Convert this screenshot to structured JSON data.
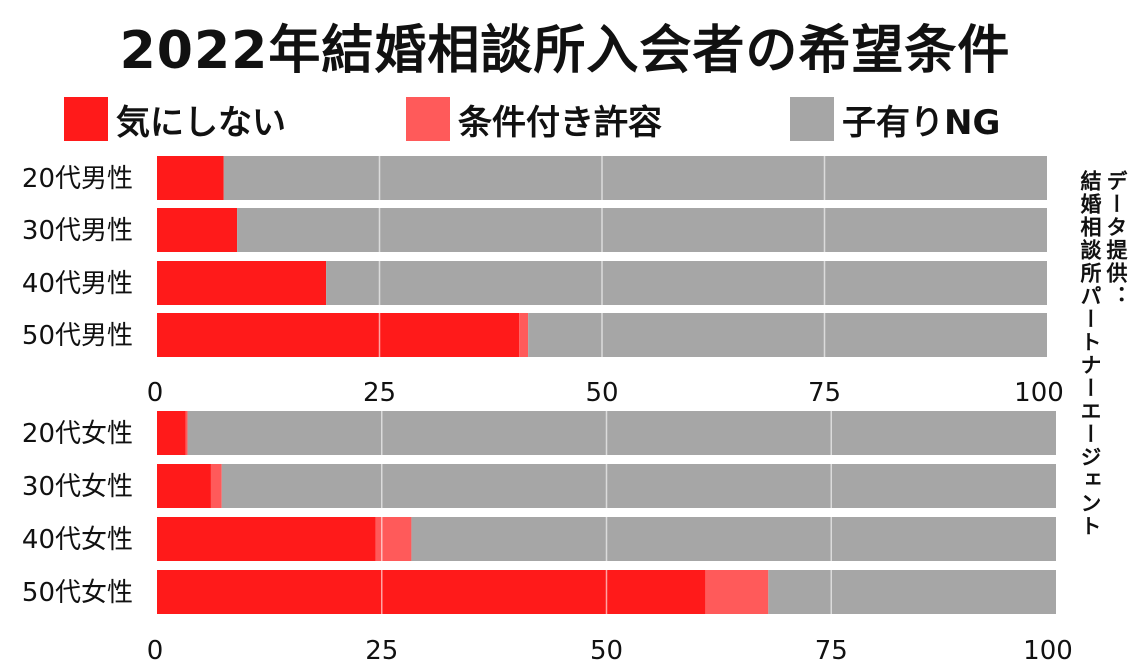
{
  "chart_data": [
    {
      "type": "bar",
      "orientation": "horizontal",
      "stacked": true,
      "title": "2022年結婚相談所入会者の希望条件",
      "categories": [
        "20代男性",
        "30代男性",
        "40代男性",
        "50代男性"
      ],
      "series": [
        {
          "name": "気にしない",
          "color": "#ff1a1a",
          "values": [
            7.5,
            9,
            19,
            40.7
          ]
        },
        {
          "name": "条件付き許容",
          "color": "#ff5a5a",
          "values": [
            0,
            0,
            0,
            1
          ]
        },
        {
          "name": "子有りNG",
          "color": "#a6a6a6",
          "values": [
            92.5,
            91,
            81,
            58.3
          ]
        }
      ],
      "xlim": [
        0,
        100
      ],
      "xticks": [
        "0",
        "25",
        "50",
        "75",
        "100"
      ],
      "legend": "top"
    },
    {
      "type": "bar",
      "orientation": "horizontal",
      "stacked": true,
      "categories": [
        "20代女性",
        "30代女性",
        "40代女性",
        "50代女性"
      ],
      "series": [
        {
          "name": "気にしない",
          "color": "#ff1a1a",
          "values": [
            3.2,
            6,
            24.3,
            61
          ]
        },
        {
          "name": "条件付き許容",
          "color": "#ff5a5a",
          "values": [
            0.2,
            1.2,
            4,
            7
          ]
        },
        {
          "name": "子有りNG",
          "color": "#a6a6a6",
          "values": [
            96.6,
            92.8,
            71.7,
            32
          ]
        }
      ],
      "xlim": [
        0,
        100
      ],
      "xticks": [
        "0",
        "25",
        "50",
        "75",
        "100"
      ]
    }
  ],
  "legend_items": [
    {
      "label": "気にしない",
      "color": "#ff1a1a"
    },
    {
      "label": "条件付き許容",
      "color": "#ff5a5a"
    },
    {
      "label": "子有りNG",
      "color": "#a6a6a6"
    }
  ],
  "credit": {
    "line1": "データ提供：",
    "line2": "結婚相談所パートナーエージェント"
  }
}
